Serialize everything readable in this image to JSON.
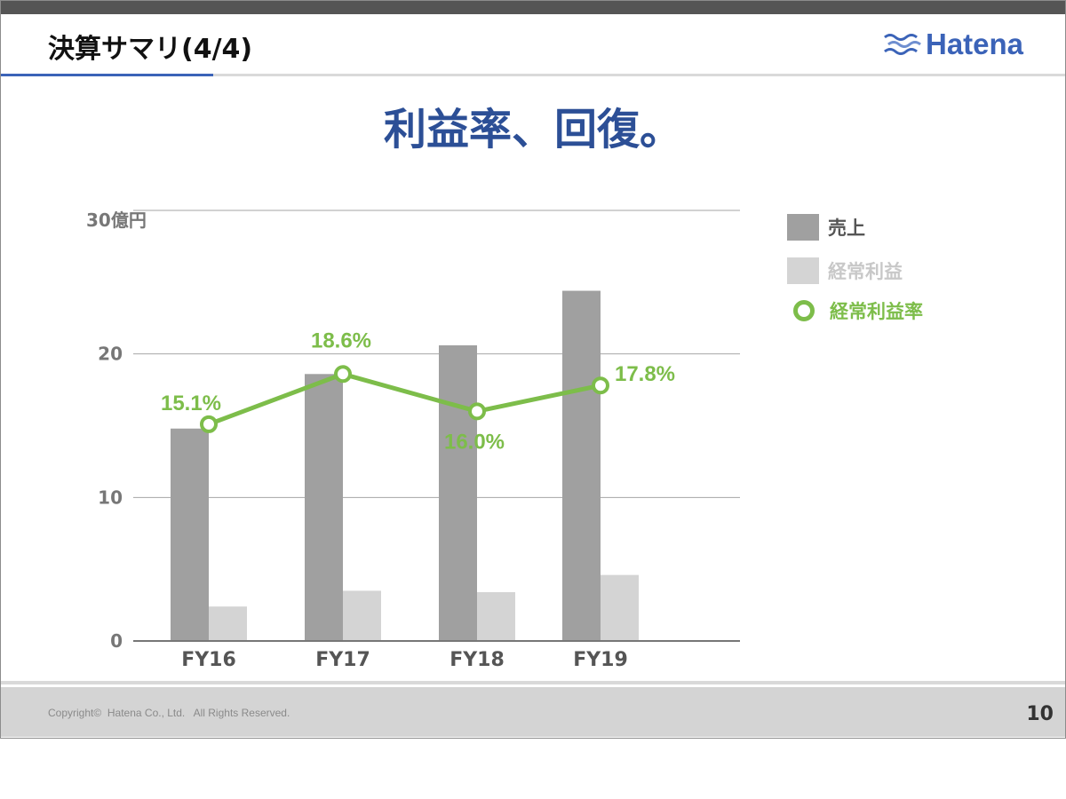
{
  "header": {
    "title": "決算サマリ(4/4)",
    "logo_text": "Hatena",
    "logo_icon": "hatena-wave-logo-icon"
  },
  "headline": "利益率、回復。",
  "chart_data": {
    "type": "bar",
    "unit_label": "30億円",
    "categories": [
      "FY16",
      "FY17",
      "FY18",
      "FY19"
    ],
    "ylim": [
      0,
      30
    ],
    "yticks": [
      {
        "value": 0,
        "label": "0"
      },
      {
        "value": 10,
        "label": "10"
      },
      {
        "value": 20,
        "label": "20"
      },
      {
        "value": 30,
        "label": "30億円"
      }
    ],
    "grid": true,
    "legend_position": "right",
    "series": [
      {
        "name": "売上",
        "type": "bar",
        "color": "#a0a0a0",
        "values": [
          14.8,
          18.6,
          20.6,
          24.4
        ]
      },
      {
        "name": "経常利益",
        "type": "bar",
        "color": "#d4d4d4",
        "values": [
          2.4,
          3.5,
          3.4,
          4.6
        ]
      },
      {
        "name": "経常利益率",
        "type": "line",
        "color": "#7dbd4a",
        "values": [
          15.1,
          18.6,
          16.0,
          17.8
        ],
        "labels": [
          "15.1%",
          "18.6%",
          "16.0%",
          "17.8%"
        ]
      }
    ]
  },
  "footer": {
    "copyright": "Copyright©  Hatena Co., Ltd.   All Rights Reserved.",
    "page_number": "10"
  },
  "colors": {
    "accent": "#3b63b8",
    "headline": "#2c4f96",
    "line": "#7dbd4a"
  }
}
